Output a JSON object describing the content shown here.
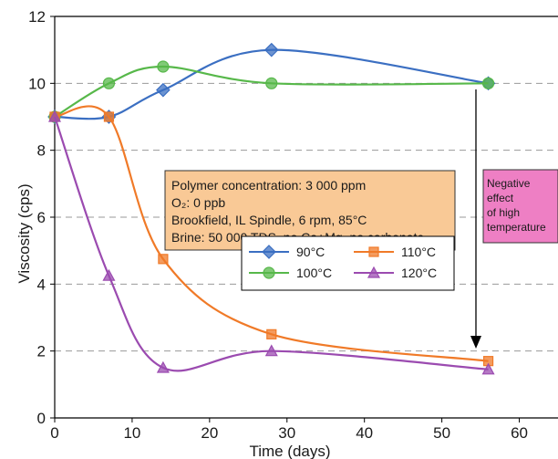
{
  "chart_data": {
    "type": "line",
    "xlabel": "Time (days)",
    "ylabel": "Viscosity (cps)",
    "xlim": [
      0,
      65
    ],
    "ylim": [
      0,
      12
    ],
    "xticks": [
      0,
      10,
      20,
      30,
      40,
      50,
      60
    ],
    "yticks": [
      0,
      2,
      4,
      6,
      8,
      10,
      12
    ],
    "grid": "horizontal dashed",
    "legend_position": "center",
    "series": [
      {
        "name": "90°C",
        "color": "#3b6fc2",
        "marker": "diamond",
        "x": [
          0,
          7,
          14,
          28,
          56
        ],
        "y": [
          9.0,
          9.0,
          9.8,
          11.0,
          10.0
        ]
      },
      {
        "name": "100°C",
        "color": "#57b84a",
        "marker": "circle",
        "x": [
          0,
          7,
          14,
          28,
          56
        ],
        "y": [
          9.0,
          10.0,
          10.5,
          10.0,
          10.0
        ]
      },
      {
        "name": "110°C",
        "color": "#f07a28",
        "marker": "square",
        "x": [
          0,
          7,
          14,
          28,
          56
        ],
        "y": [
          9.0,
          9.0,
          4.75,
          2.5,
          1.7
        ]
      },
      {
        "name": "120°C",
        "color": "#9b4bb0",
        "marker": "triangle",
        "x": [
          0,
          7,
          14,
          28,
          56
        ],
        "y": [
          9.0,
          4.25,
          1.5,
          2.0,
          1.45
        ]
      }
    ],
    "annotations": {
      "conditions_box": [
        "Polymer concentration: 3 000 ppm",
        "O₂: 0 ppb",
        "Brookfield, IL Spindle, 6 rpm, 85°C",
        "Brine: 50 000 TDS, no Ca+Mg, no carbonate"
      ],
      "negative_effect_box": [
        "Negative",
        "effect",
        "of high",
        "temperature"
      ]
    }
  },
  "colors": {
    "conditions_box_fill": "#f9c996",
    "negative_box_fill": "#ee7fc4",
    "grid": "#9a9a9a",
    "axis": "#000000"
  }
}
